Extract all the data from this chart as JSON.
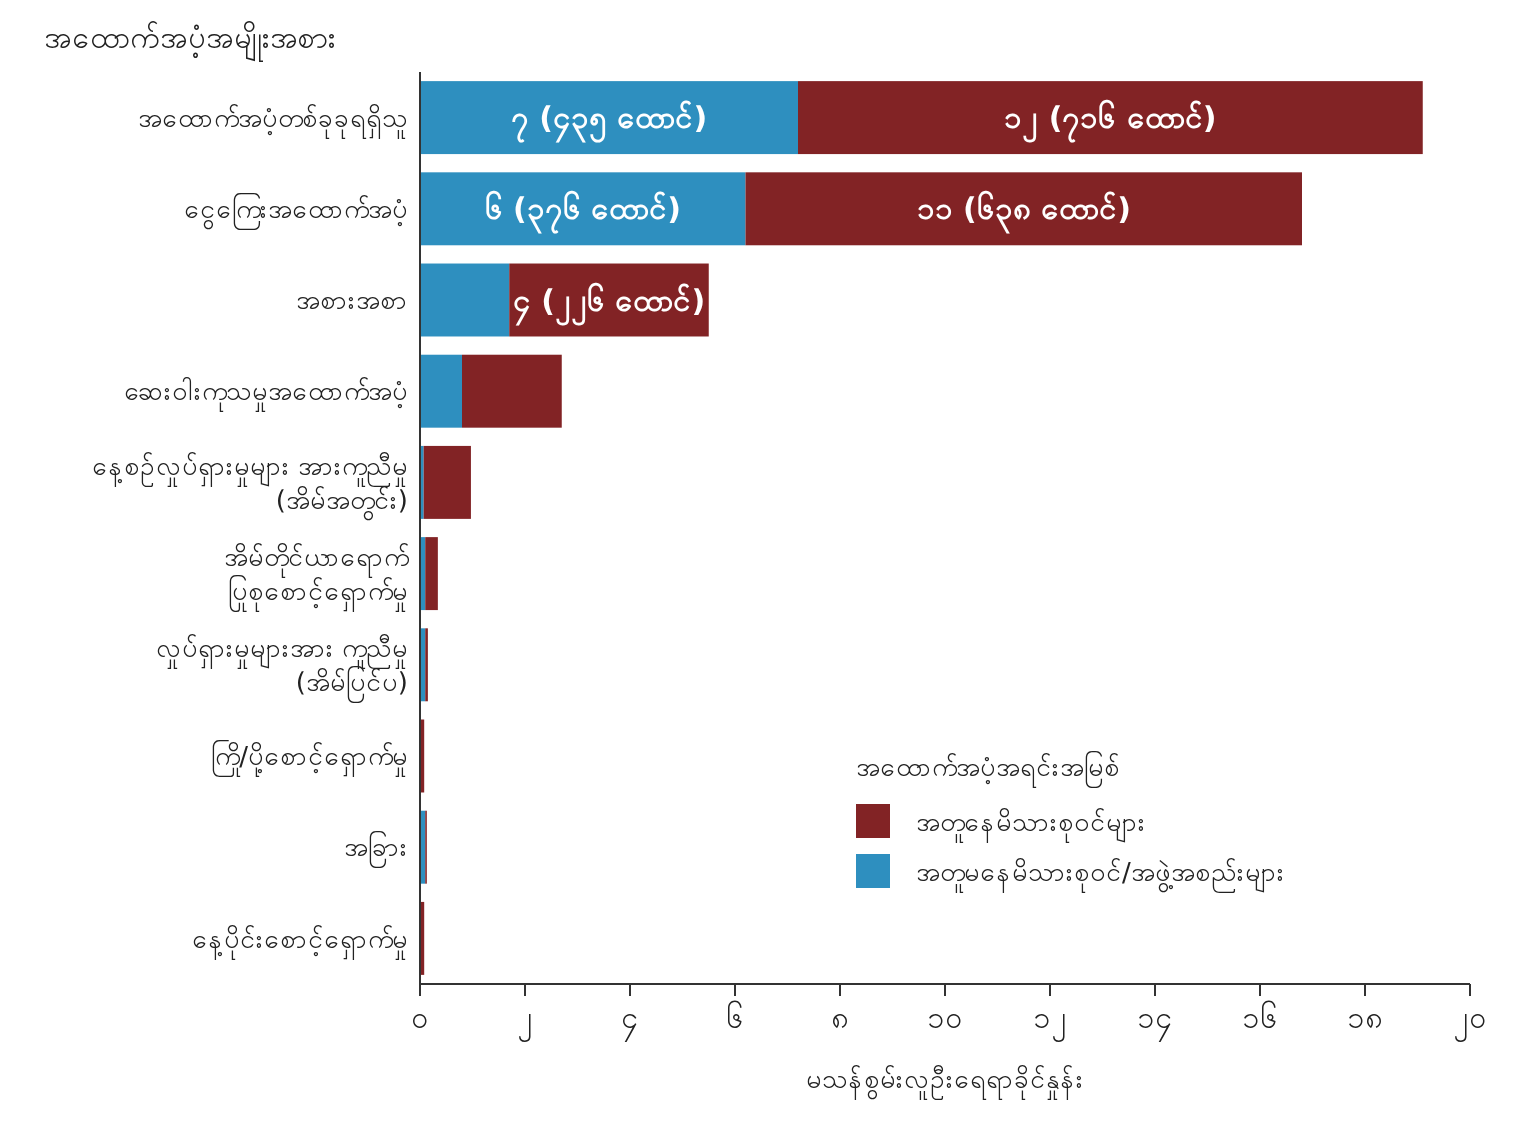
{
  "chart_data": {
    "type": "bar",
    "orientation": "horizontal",
    "stacked": true,
    "ylabel": "အထောက်အပံ့အမျိုးအစား",
    "xlabel": "မသန်စွမ်းလူဦးရေရာခိုင်နှုန်း",
    "legend_title": "အထောက်အပံ့အရင်းအမြစ်",
    "categories": [
      "အထောက်အပံ့တစ်ခုခုရရှိသူ",
      "ငွေကြေးအထောက်အပံ့",
      "အစားအစာ",
      "ဆေးဝါးကုသမှုအထောက်အပံ့",
      "နေ့စဉ်လှုပ်ရှားမှုများ အားကူညီမှု\n(အိမ်အတွင်း)",
      "အိမ်တိုင်ယာရောက်\nပြုစုစောင့်ရှောက်မှု",
      "လှုပ်ရှားမှုများအား ကူညီမှု\n(အိမ်ပြင်ပ)",
      "ကြို/ပို့စောင့်ရှောက်မှု",
      "အခြား",
      "နေ့ပိုင်းစောင့်ရှောက်မှု"
    ],
    "series": [
      {
        "name": "အတူမနေမိသားစုဝင်/အဖွဲ့အစည်းများ",
        "color": "#2e8fbf",
        "values": [
          7.2,
          6.2,
          1.7,
          0.8,
          0.07,
          0.1,
          0.1,
          0,
          0.1,
          0
        ],
        "value_labels": [
          "၇ (၄၃၅ ထောင်)",
          "၆ (၃၇၆ ထောင်)",
          null,
          null,
          null,
          null,
          null,
          null,
          null,
          null
        ]
      },
      {
        "name": "အတူနေမိသားစုဝင်များ",
        "color": "#822325",
        "values": [
          11.9,
          10.6,
          3.8,
          1.9,
          0.9,
          0.24,
          0.05,
          0.08,
          0.03,
          0.08
        ],
        "value_labels": [
          "၁၂ (၇၁၆ ထောင်)",
          "၁၁ (၆၃၈ ထောင်)",
          "၄ (၂၂၆ ထောင်)",
          null,
          null,
          null,
          null,
          null,
          null,
          null
        ]
      }
    ],
    "xlim": [
      0,
      20
    ],
    "xticks": [
      {
        "value": 0,
        "label": "၀"
      },
      {
        "value": 2,
        "label": "၂"
      },
      {
        "value": 4,
        "label": "၄"
      },
      {
        "value": 6,
        "label": "၆"
      },
      {
        "value": 8,
        "label": "၈"
      },
      {
        "value": 10,
        "label": "၁၀"
      },
      {
        "value": 12,
        "label": "၁၂"
      },
      {
        "value": 14,
        "label": "၁၄"
      },
      {
        "value": 16,
        "label": "၁၆"
      },
      {
        "value": 18,
        "label": "၁၈"
      },
      {
        "value": 20,
        "label": "၂၀"
      }
    ],
    "grid": false,
    "legend": "bottom right"
  }
}
